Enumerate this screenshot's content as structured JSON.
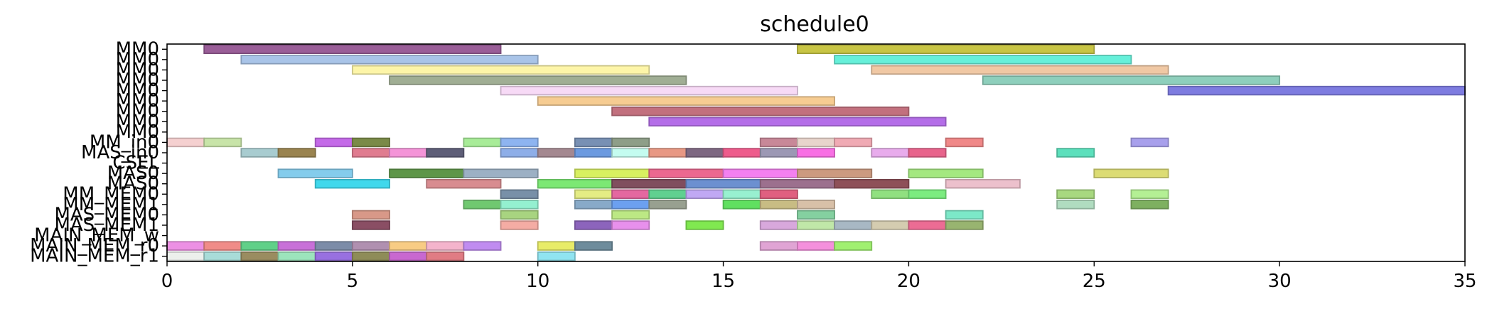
{
  "chart_data": {
    "type": "gantt",
    "title": "schedule0",
    "xlabel": "",
    "ylabel": "",
    "xlim": [
      0,
      35
    ],
    "x_ticks": [
      0,
      5,
      10,
      15,
      20,
      25,
      30,
      35
    ],
    "grid": false,
    "rows": [
      "MM0",
      "MM0",
      "MM0",
      "MM0",
      "MM0",
      "MM0",
      "MM0",
      "MM0",
      "MM0",
      "MM_in0",
      "MAS_in0",
      "CSEL",
      "MAS0",
      "MAS0",
      "MM_MEM0",
      "MM_MEM1",
      "MAS_MEM0",
      "MAS_MEM1",
      "MAIN_MEM_w",
      "MAIN_MEM_r0",
      "MAIN_MEM_r1"
    ],
    "bars": [
      {
        "row": 0,
        "start": 1,
        "end": 9,
        "color": "#9a5e98"
      },
      {
        "row": 0,
        "start": 17,
        "end": 25,
        "color": "#c8c545"
      },
      {
        "row": 1,
        "start": 2,
        "end": 10,
        "color": "#a9c4e8"
      },
      {
        "row": 1,
        "start": 18,
        "end": 26,
        "color": "#66f0da"
      },
      {
        "row": 2,
        "start": 5,
        "end": 13,
        "color": "#fdf5a8"
      },
      {
        "row": 2,
        "start": 19,
        "end": 27,
        "color": "#f0c8a4"
      },
      {
        "row": 3,
        "start": 6,
        "end": 14,
        "color": "#a0ae94"
      },
      {
        "row": 3,
        "start": 22,
        "end": 30,
        "color": "#8ecfbc"
      },
      {
        "row": 4,
        "start": 9,
        "end": 17,
        "color": "#f7daf6"
      },
      {
        "row": 4,
        "start": 27,
        "end": 35,
        "color": "#7e7ce0"
      },
      {
        "row": 5,
        "start": 10,
        "end": 18,
        "color": "#f6cc92"
      },
      {
        "row": 6,
        "start": 12,
        "end": 20,
        "color": "#c2707e"
      },
      {
        "row": 7,
        "start": 13,
        "end": 21,
        "color": "#b46ee8"
      },
      {
        "row": 9,
        "start": 0,
        "end": 1,
        "color": "#f5d0d0"
      },
      {
        "row": 9,
        "start": 1,
        "end": 2,
        "color": "#c8e4a8"
      },
      {
        "row": 9,
        "start": 4,
        "end": 5,
        "color": "#c46ae8"
      },
      {
        "row": 9,
        "start": 5,
        "end": 6,
        "color": "#7a8a48"
      },
      {
        "row": 9,
        "start": 8,
        "end": 9,
        "color": "#a8ec98"
      },
      {
        "row": 9,
        "start": 9,
        "end": 10,
        "color": "#8eb4f0"
      },
      {
        "row": 9,
        "start": 11,
        "end": 12,
        "color": "#7890b4"
      },
      {
        "row": 9,
        "start": 12,
        "end": 13,
        "color": "#8e9e88"
      },
      {
        "row": 9,
        "start": 16,
        "end": 17,
        "color": "#c88898"
      },
      {
        "row": 9,
        "start": 17,
        "end": 18,
        "color": "#e8d4cc"
      },
      {
        "row": 9,
        "start": 18,
        "end": 19,
        "color": "#f0aab4"
      },
      {
        "row": 9,
        "start": 21,
        "end": 22,
        "color": "#f08888"
      },
      {
        "row": 9,
        "start": 26,
        "end": 27,
        "color": "#a8a0ec"
      },
      {
        "row": 10,
        "start": 2,
        "end": 3,
        "color": "#a8ccd0"
      },
      {
        "row": 10,
        "start": 3,
        "end": 4,
        "color": "#9a8450"
      },
      {
        "row": 10,
        "start": 5,
        "end": 6,
        "color": "#e07c90"
      },
      {
        "row": 10,
        "start": 6,
        "end": 7,
        "color": "#f494d8"
      },
      {
        "row": 10,
        "start": 7,
        "end": 8,
        "color": "#5e5e78"
      },
      {
        "row": 10,
        "start": 9,
        "end": 10,
        "color": "#8eaee8"
      },
      {
        "row": 10,
        "start": 10,
        "end": 11,
        "color": "#a48890"
      },
      {
        "row": 10,
        "start": 11,
        "end": 12,
        "color": "#6c9ae0"
      },
      {
        "row": 10,
        "start": 12,
        "end": 13,
        "color": "#c4fcf0"
      },
      {
        "row": 10,
        "start": 13,
        "end": 14,
        "color": "#e89884"
      },
      {
        "row": 10,
        "start": 14,
        "end": 15,
        "color": "#7e6882"
      },
      {
        "row": 10,
        "start": 15,
        "end": 16,
        "color": "#ee5c8c"
      },
      {
        "row": 10,
        "start": 16,
        "end": 17,
        "color": "#9c98b4"
      },
      {
        "row": 10,
        "start": 17,
        "end": 18,
        "color": "#f870e4"
      },
      {
        "row": 10,
        "start": 19,
        "end": 20,
        "color": "#e8acec"
      },
      {
        "row": 10,
        "start": 20,
        "end": 21,
        "color": "#e8648c"
      },
      {
        "row": 10,
        "start": 24,
        "end": 25,
        "color": "#5ce0bc"
      },
      {
        "row": 12,
        "start": 3,
        "end": 5,
        "color": "#84ccec"
      },
      {
        "row": 12,
        "start": 6,
        "end": 8,
        "color": "#5e9648"
      },
      {
        "row": 12,
        "start": 8,
        "end": 10,
        "color": "#9cb0c4"
      },
      {
        "row": 12,
        "start": 11,
        "end": 13,
        "color": "#d8f060"
      },
      {
        "row": 12,
        "start": 13,
        "end": 15,
        "color": "#ec6890"
      },
      {
        "row": 12,
        "start": 15,
        "end": 17,
        "color": "#f480f0"
      },
      {
        "row": 12,
        "start": 17,
        "end": 19,
        "color": "#cc9a80"
      },
      {
        "row": 12,
        "start": 20,
        "end": 22,
        "color": "#a4e880"
      },
      {
        "row": 12,
        "start": 25,
        "end": 27,
        "color": "#dcdc74"
      },
      {
        "row": 13,
        "start": 4,
        "end": 6,
        "color": "#40d8ec"
      },
      {
        "row": 13,
        "start": 7,
        "end": 9,
        "color": "#d88c90"
      },
      {
        "row": 13,
        "start": 10,
        "end": 12,
        "color": "#7ce874"
      },
      {
        "row": 13,
        "start": 12,
        "end": 14,
        "color": "#804e5e"
      },
      {
        "row": 13,
        "start": 14,
        "end": 16,
        "color": "#6c90d0"
      },
      {
        "row": 13,
        "start": 16,
        "end": 18,
        "color": "#9c708e"
      },
      {
        "row": 13,
        "start": 18,
        "end": 20,
        "color": "#8e5058"
      },
      {
        "row": 13,
        "start": 21,
        "end": 23,
        "color": "#ecc0cc"
      },
      {
        "row": 14,
        "start": 9,
        "end": 10,
        "color": "#7890a8"
      },
      {
        "row": 14,
        "start": 11,
        "end": 12,
        "color": "#e4ec84"
      },
      {
        "row": 14,
        "start": 12,
        "end": 13,
        "color": "#e468a0"
      },
      {
        "row": 14,
        "start": 13,
        "end": 14,
        "color": "#60d090"
      },
      {
        "row": 14,
        "start": 14,
        "end": 15,
        "color": "#c0a8f4"
      },
      {
        "row": 14,
        "start": 15,
        "end": 16,
        "color": "#98f0d0"
      },
      {
        "row": 14,
        "start": 16,
        "end": 17,
        "color": "#e06080"
      },
      {
        "row": 14,
        "start": 19,
        "end": 20,
        "color": "#90e080"
      },
      {
        "row": 14,
        "start": 20,
        "end": 21,
        "color": "#7cec80"
      },
      {
        "row": 14,
        "start": 24,
        "end": 25,
        "color": "#a8d880"
      },
      {
        "row": 14,
        "start": 26,
        "end": 27,
        "color": "#b4f094"
      },
      {
        "row": 15,
        "start": 8,
        "end": 9,
        "color": "#70c870"
      },
      {
        "row": 15,
        "start": 9,
        "end": 10,
        "color": "#94f0d0"
      },
      {
        "row": 15,
        "start": 11,
        "end": 12,
        "color": "#88aac8"
      },
      {
        "row": 15,
        "start": 12,
        "end": 13,
        "color": "#6ca0f0"
      },
      {
        "row": 15,
        "start": 13,
        "end": 14,
        "color": "#98a090"
      },
      {
        "row": 15,
        "start": 15,
        "end": 16,
        "color": "#60e060"
      },
      {
        "row": 15,
        "start": 16,
        "end": 17,
        "color": "#c8bc84"
      },
      {
        "row": 15,
        "start": 17,
        "end": 18,
        "color": "#d8c0a8"
      },
      {
        "row": 15,
        "start": 24,
        "end": 25,
        "color": "#b0dcc0"
      },
      {
        "row": 15,
        "start": 26,
        "end": 27,
        "color": "#7eb060"
      },
      {
        "row": 16,
        "start": 5,
        "end": 6,
        "color": "#d89888"
      },
      {
        "row": 16,
        "start": 9,
        "end": 10,
        "color": "#a8d480"
      },
      {
        "row": 16,
        "start": 12,
        "end": 13,
        "color": "#bce884"
      },
      {
        "row": 16,
        "start": 17,
        "end": 18,
        "color": "#84d0a0"
      },
      {
        "row": 16,
        "start": 21,
        "end": 22,
        "color": "#7ce8c8"
      },
      {
        "row": 17,
        "start": 5,
        "end": 6,
        "color": "#8a4e64"
      },
      {
        "row": 17,
        "start": 9,
        "end": 10,
        "color": "#f4aca4"
      },
      {
        "row": 17,
        "start": 11,
        "end": 12,
        "color": "#8c64bc"
      },
      {
        "row": 17,
        "start": 12,
        "end": 13,
        "color": "#e890ec"
      },
      {
        "row": 17,
        "start": 14,
        "end": 15,
        "color": "#80e850"
      },
      {
        "row": 17,
        "start": 16,
        "end": 17,
        "color": "#d8a8dc"
      },
      {
        "row": 17,
        "start": 17,
        "end": 18,
        "color": "#c0e8a8"
      },
      {
        "row": 17,
        "start": 18,
        "end": 19,
        "color": "#a8b8c4"
      },
      {
        "row": 17,
        "start": 19,
        "end": 20,
        "color": "#d4ccb0"
      },
      {
        "row": 17,
        "start": 20,
        "end": 21,
        "color": "#ec6c94"
      },
      {
        "row": 17,
        "start": 21,
        "end": 22,
        "color": "#98b470"
      },
      {
        "row": 19,
        "start": 0,
        "end": 1,
        "color": "#ec90e4"
      },
      {
        "row": 19,
        "start": 1,
        "end": 2,
        "color": "#f08c88"
      },
      {
        "row": 19,
        "start": 2,
        "end": 3,
        "color": "#60d088"
      },
      {
        "row": 19,
        "start": 3,
        "end": 4,
        "color": "#c870d8"
      },
      {
        "row": 19,
        "start": 4,
        "end": 5,
        "color": "#7c8ca8"
      },
      {
        "row": 19,
        "start": 5,
        "end": 6,
        "color": "#b090b0"
      },
      {
        "row": 19,
        "start": 6,
        "end": 7,
        "color": "#f8cc84"
      },
      {
        "row": 19,
        "start": 7,
        "end": 8,
        "color": "#f4b4cc"
      },
      {
        "row": 19,
        "start": 8,
        "end": 9,
        "color": "#c08cf0"
      },
      {
        "row": 19,
        "start": 10,
        "end": 11,
        "color": "#e8ec68"
      },
      {
        "row": 19,
        "start": 11,
        "end": 12,
        "color": "#6e8c9c"
      },
      {
        "row": 19,
        "start": 16,
        "end": 17,
        "color": "#e0a4d4"
      },
      {
        "row": 19,
        "start": 17,
        "end": 18,
        "color": "#f490dc"
      },
      {
        "row": 19,
        "start": 18,
        "end": 19,
        "color": "#a0f070"
      },
      {
        "row": 20,
        "start": 0,
        "end": 1,
        "color": "#ecf0ec"
      },
      {
        "row": 20,
        "start": 1,
        "end": 2,
        "color": "#a8dcd8"
      },
      {
        "row": 20,
        "start": 2,
        "end": 3,
        "color": "#9a8c60"
      },
      {
        "row": 20,
        "start": 3,
        "end": 4,
        "color": "#9ce4bc"
      },
      {
        "row": 20,
        "start": 4,
        "end": 5,
        "color": "#9870e0"
      },
      {
        "row": 20,
        "start": 5,
        "end": 6,
        "color": "#8e8c58"
      },
      {
        "row": 20,
        "start": 6,
        "end": 7,
        "color": "#c868d0"
      },
      {
        "row": 20,
        "start": 7,
        "end": 8,
        "color": "#e07c84"
      },
      {
        "row": 20,
        "start": 10,
        "end": 11,
        "color": "#90e4f0"
      }
    ]
  }
}
